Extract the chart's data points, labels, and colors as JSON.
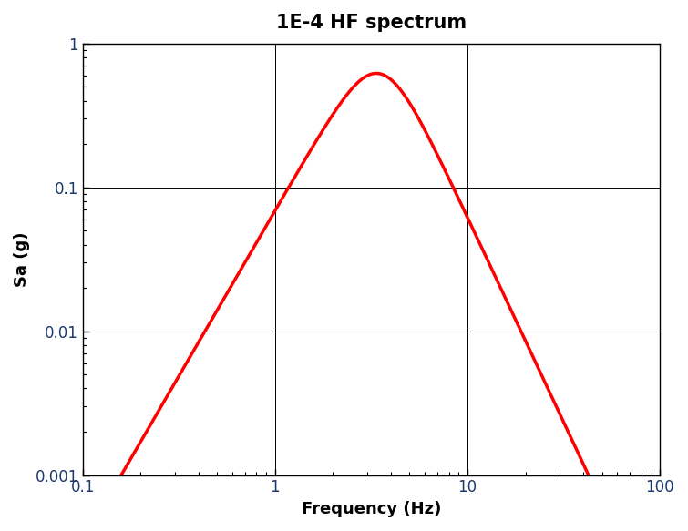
{
  "title": "1E-4 HF spectrum",
  "xlabel": "Frequency (Hz)",
  "ylabel": "Sa (g)",
  "xlim": [
    0.1,
    100
  ],
  "ylim": [
    0.001,
    1
  ],
  "line_color": "#ff0000",
  "line_width": 2.5,
  "background_color": "#ffffff",
  "title_fontsize": 15,
  "label_fontsize": 13,
  "tick_fontsize": 12,
  "tick_color": "#1a3a6b",
  "curve_params": {
    "f_start": 0.13,
    "f_end": 100,
    "n1": 2.3,
    "n2": 2.85,
    "fc": 3.5,
    "scale": 0.62
  }
}
